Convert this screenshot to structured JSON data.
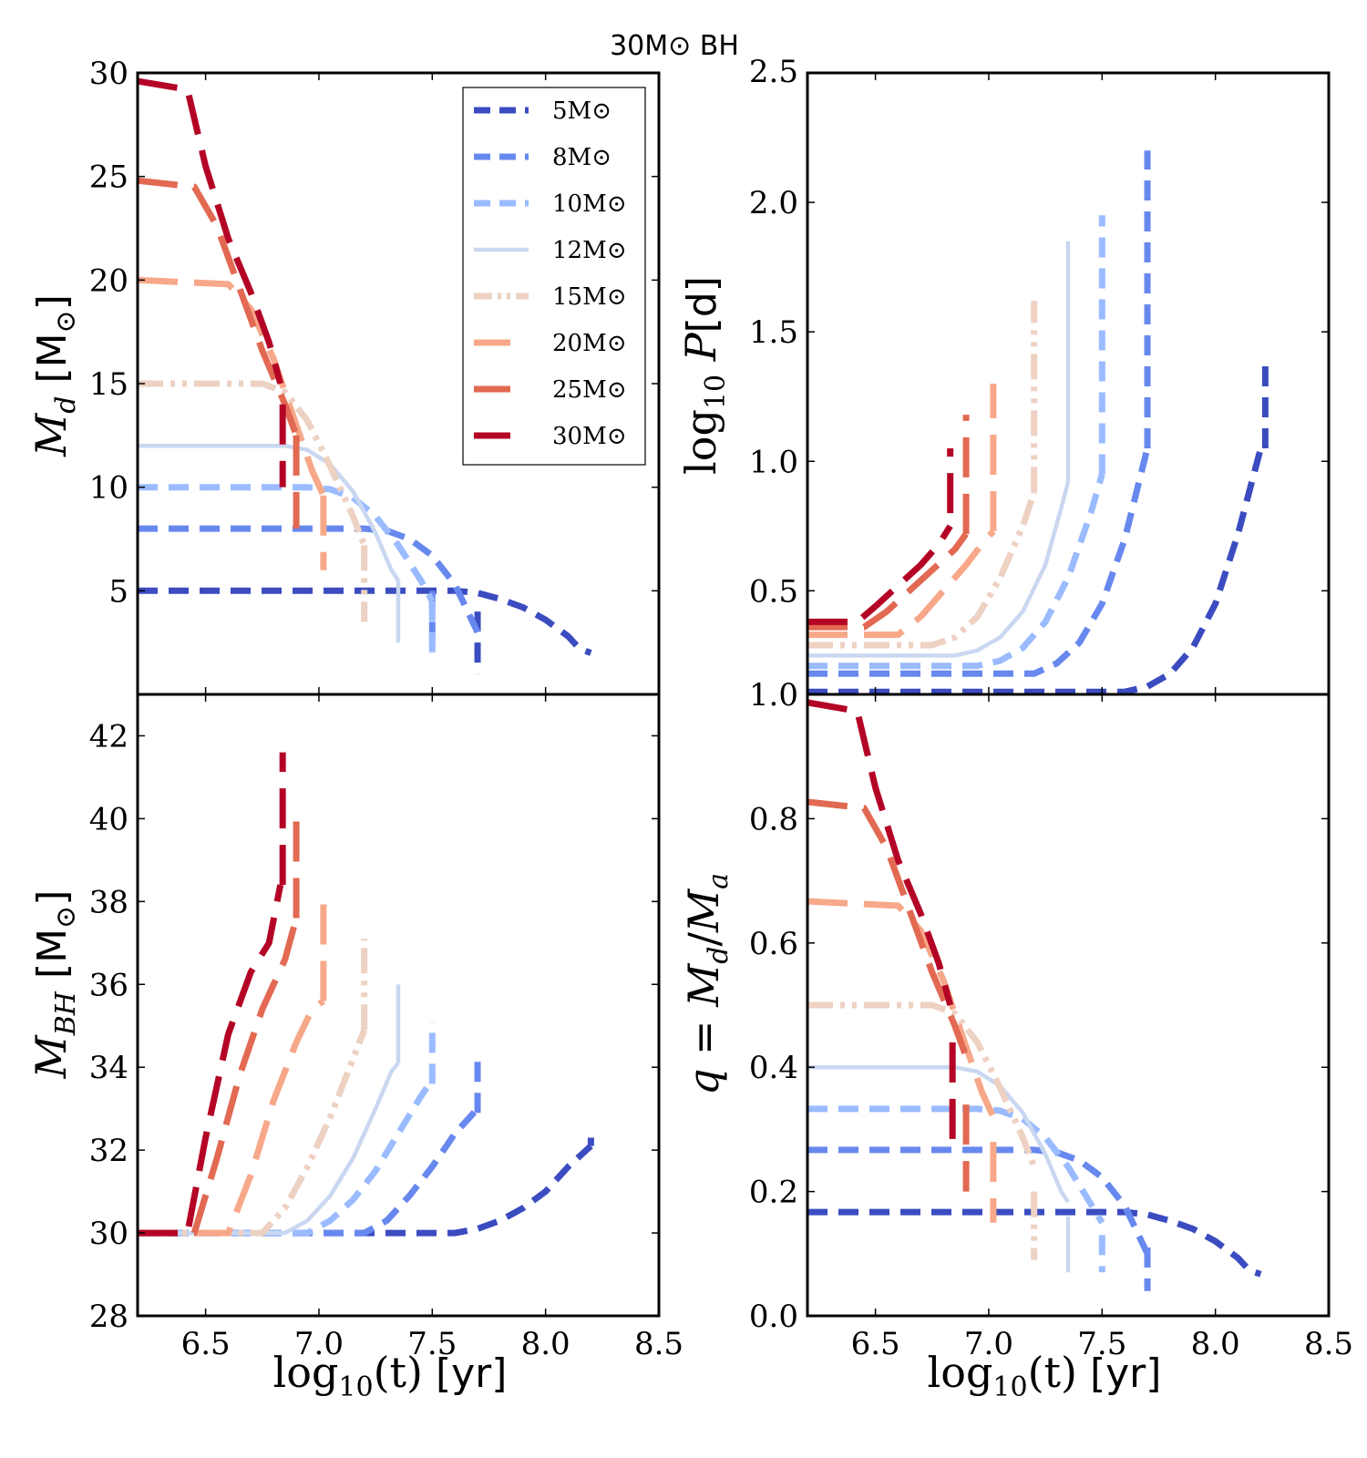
{
  "figure_title": "30M⊙ BH",
  "colors": {
    "5": "#3b4cc0",
    "8": "#6788ee",
    "10": "#9abbff",
    "12": "#c9d7f0",
    "15": "#edd1c2",
    "20": "#f7a889",
    "25": "#e26952",
    "30": "#b40426"
  },
  "legend_labels": [
    "5M⊙",
    "8M⊙",
    "10M⊙",
    "12M⊙",
    "15M⊙",
    "20M⊙",
    "25M⊙",
    "30M⊙"
  ],
  "chart_data": [
    {
      "id": "md",
      "type": "line",
      "title": "",
      "xlabel": "",
      "ylabel": "M_d [M⊙]",
      "ylabel_parts": {
        "italic": "M",
        "sub": "d",
        "unit": " [M",
        "sun": "⊙",
        "close": "]"
      },
      "xlim": [
        6.2,
        8.5
      ],
      "ylim": [
        0,
        30
      ],
      "xticks": [],
      "xtick_labels": [],
      "yticks": [
        5,
        10,
        15,
        20,
        25,
        30
      ],
      "ytick_labels": [
        "5",
        "10",
        "15",
        "20",
        "25",
        "30"
      ],
      "legend": "upper-right",
      "series": [
        {
          "name": "5M⊙",
          "style": "dash",
          "x": [
            6.2,
            7.6,
            7.7,
            7.8,
            7.9,
            8.0,
            8.1,
            8.15,
            8.2
          ],
          "y": [
            5,
            5,
            4.9,
            4.6,
            4.2,
            3.6,
            2.8,
            2.2,
            2.0
          ],
          "drop": {
            "x": 7.7,
            "y0": 4.0,
            "y1": 1.0
          }
        },
        {
          "name": "8M⊙",
          "style": "dash",
          "x": [
            6.2,
            7.2,
            7.3,
            7.4,
            7.5,
            7.6,
            7.7
          ],
          "y": [
            8,
            8,
            7.9,
            7.5,
            6.7,
            5.3,
            3.0
          ],
          "drop": {
            "x": 7.5,
            "y0": 5.0,
            "y1": 2.0
          }
        },
        {
          "name": "10M⊙",
          "style": "dash",
          "x": [
            6.2,
            6.95,
            7.05,
            7.15,
            7.25,
            7.35,
            7.45,
            7.5
          ],
          "y": [
            10,
            10,
            9.9,
            9.5,
            8.6,
            7.2,
            5.5,
            4.5
          ],
          "drop": {
            "x": 7.5,
            "y0": 4.5,
            "y1": 2.0
          }
        },
        {
          "name": "12M⊙",
          "style": "solid",
          "x": [
            6.2,
            6.85,
            6.95,
            7.05,
            7.15,
            7.25,
            7.32,
            7.35
          ],
          "y": [
            12,
            12,
            11.8,
            11.1,
            9.8,
            7.8,
            6.0,
            5.5
          ],
          "drop": {
            "x": 7.35,
            "y0": 5.5,
            "y1": 2.5
          }
        },
        {
          "name": "15M⊙",
          "style": "dashdotdot",
          "x": [
            6.2,
            6.75,
            6.85,
            6.95,
            7.05,
            7.15,
            7.2
          ],
          "y": [
            15,
            15,
            14.6,
            13.2,
            11.0,
            8.6,
            7.2
          ],
          "drop": {
            "x": 7.2,
            "y0": 7.2,
            "y1": 3.5
          }
        },
        {
          "name": "20M⊙",
          "style": "longdash",
          "x": [
            6.2,
            6.6,
            6.7,
            6.8,
            6.9,
            6.97,
            7.02
          ],
          "y": [
            20,
            19.8,
            18.6,
            16.2,
            13.0,
            10.8,
            9.6
          ],
          "drop": {
            "x": 7.02,
            "y0": 9.6,
            "y1": 6.0
          }
        },
        {
          "name": "25M⊙",
          "style": "longdash",
          "x": [
            6.2,
            6.45,
            6.55,
            6.65,
            6.75,
            6.85,
            6.9
          ],
          "y": [
            24.8,
            24.5,
            22.6,
            19.6,
            16.6,
            14.0,
            12.5
          ],
          "drop": {
            "x": 6.9,
            "y0": 12.5,
            "y1": 8.0
          }
        },
        {
          "name": "30M⊙",
          "style": "longdash",
          "x": [
            6.2,
            6.42,
            6.5,
            6.6,
            6.7,
            6.78,
            6.83
          ],
          "y": [
            29.6,
            29.2,
            25.5,
            22.0,
            19.4,
            17.0,
            15.0
          ],
          "drop": {
            "x": 6.84,
            "y0": 14.0,
            "y1": 10.0
          }
        }
      ]
    },
    {
      "id": "logp",
      "type": "line",
      "title": "",
      "xlabel": "",
      "ylabel": "log10 P[d]",
      "ylabel_parts": {
        "log": "log",
        "sub": "10",
        "italic": " P",
        "unit": "[d]"
      },
      "xlim": [
        6.2,
        8.5
      ],
      "ylim": [
        0.1,
        2.5
      ],
      "xticks": [],
      "xtick_labels": [],
      "yticks": [
        0.5,
        1.0,
        1.5,
        2.0,
        2.5
      ],
      "ytick_labels": [
        "0.5",
        "1.0",
        "1.5",
        "2.0",
        "2.5"
      ],
      "legend": "none",
      "series": [
        {
          "name": "5M⊙",
          "style": "dash",
          "x": [
            6.2,
            7.6,
            7.7,
            7.8,
            7.9,
            8.0,
            8.1,
            8.2
          ],
          "y": [
            0.11,
            0.11,
            0.13,
            0.18,
            0.28,
            0.45,
            0.72,
            1.05
          ],
          "drop": {
            "x": 8.22,
            "y0": 1.05,
            "y1": 1.38
          }
        },
        {
          "name": "8M⊙",
          "style": "dash",
          "x": [
            6.2,
            7.2,
            7.3,
            7.4,
            7.5,
            7.6,
            7.7
          ],
          "y": [
            0.18,
            0.18,
            0.22,
            0.3,
            0.45,
            0.7,
            1.05
          ],
          "drop": {
            "x": 7.7,
            "y0": 1.05,
            "y1": 2.2
          }
        },
        {
          "name": "10M⊙",
          "style": "dash",
          "x": [
            6.2,
            6.95,
            7.05,
            7.15,
            7.25,
            7.35,
            7.45,
            7.5
          ],
          "y": [
            0.21,
            0.21,
            0.23,
            0.28,
            0.38,
            0.55,
            0.8,
            0.95
          ],
          "drop": {
            "x": 7.5,
            "y0": 0.95,
            "y1": 1.95
          }
        },
        {
          "name": "12M⊙",
          "style": "solid",
          "x": [
            6.2,
            6.85,
            6.95,
            7.05,
            7.15,
            7.25,
            7.32,
            7.35
          ],
          "y": [
            0.25,
            0.25,
            0.27,
            0.32,
            0.42,
            0.6,
            0.82,
            0.92
          ],
          "drop": {
            "x": 7.35,
            "y0": 0.92,
            "y1": 1.85
          }
        },
        {
          "name": "15M⊙",
          "style": "dashdotdot",
          "x": [
            6.2,
            6.75,
            6.85,
            6.95,
            7.05,
            7.15,
            7.2
          ],
          "y": [
            0.29,
            0.29,
            0.32,
            0.4,
            0.55,
            0.75,
            0.88
          ],
          "drop": {
            "x": 7.2,
            "y0": 0.88,
            "y1": 1.62
          }
        },
        {
          "name": "20M⊙",
          "style": "longdash",
          "x": [
            6.2,
            6.6,
            6.7,
            6.8,
            6.9,
            6.97,
            7.02
          ],
          "y": [
            0.33,
            0.33,
            0.4,
            0.5,
            0.6,
            0.68,
            0.73
          ],
          "drop": {
            "x": 7.02,
            "y0": 0.73,
            "y1": 1.3
          }
        },
        {
          "name": "25M⊙",
          "style": "longdash",
          "x": [
            6.2,
            6.45,
            6.55,
            6.65,
            6.75,
            6.85,
            6.9
          ],
          "y": [
            0.36,
            0.36,
            0.42,
            0.5,
            0.58,
            0.66,
            0.72
          ],
          "drop": {
            "x": 6.9,
            "y0": 0.72,
            "y1": 1.18
          }
        },
        {
          "name": "30M⊙",
          "style": "longdash",
          "x": [
            6.2,
            6.42,
            6.5,
            6.6,
            6.7,
            6.78,
            6.83
          ],
          "y": [
            0.38,
            0.38,
            0.44,
            0.52,
            0.6,
            0.68,
            0.75
          ],
          "drop": {
            "x": 6.83,
            "y0": 0.8,
            "y1": 1.05
          }
        }
      ]
    },
    {
      "id": "mbh",
      "type": "line",
      "title": "",
      "xlabel": "log10(t) [yr]",
      "xlabel_parts": {
        "log": "log",
        "sub": "10",
        "arg": "(t)",
        "unit": " [yr]"
      },
      "ylabel": "M_BH [M⊙]",
      "ylabel_parts": {
        "italic": "M",
        "sub": "BH",
        "unit": " [M",
        "sun": "⊙",
        "close": "]"
      },
      "xlim": [
        6.2,
        8.5
      ],
      "ylim": [
        28,
        43
      ],
      "xticks": [
        6.5,
        7.0,
        7.5,
        8.0,
        8.5
      ],
      "xtick_labels": [
        "6.5",
        "7.0",
        "7.5",
        "8.0",
        "8.5"
      ],
      "yticks": [
        28,
        30,
        32,
        34,
        36,
        38,
        40,
        42
      ],
      "ytick_labels": [
        "28",
        "30",
        "32",
        "34",
        "36",
        "38",
        "40",
        "42"
      ],
      "legend": "none",
      "series": [
        {
          "name": "5M⊙",
          "style": "dash",
          "x": [
            6.2,
            7.6,
            7.7,
            7.8,
            7.9,
            8.0,
            8.1,
            8.2
          ],
          "y": [
            30,
            30,
            30.1,
            30.3,
            30.6,
            31.0,
            31.6,
            32.1
          ],
          "drop": {
            "x": 8.2,
            "y0": 32.1,
            "y1": 32.3
          }
        },
        {
          "name": "8M⊙",
          "style": "dash",
          "x": [
            6.2,
            7.2,
            7.3,
            7.4,
            7.5,
            7.6,
            7.7
          ],
          "y": [
            30,
            30,
            30.3,
            30.9,
            31.6,
            32.4,
            33.0
          ],
          "drop": {
            "x": 7.7,
            "y0": 32.9,
            "y1": 34.3
          }
        },
        {
          "name": "10M⊙",
          "style": "dash",
          "x": [
            6.2,
            6.95,
            7.05,
            7.15,
            7.25,
            7.35,
            7.45,
            7.5
          ],
          "y": [
            30,
            30,
            30.3,
            30.8,
            31.5,
            32.4,
            33.3,
            33.7
          ],
          "drop": {
            "x": 7.5,
            "y0": 33.6,
            "y1": 35.1
          }
        },
        {
          "name": "12M⊙",
          "style": "solid",
          "x": [
            6.2,
            6.85,
            6.95,
            7.05,
            7.15,
            7.25,
            7.32,
            7.35
          ],
          "y": [
            30,
            30,
            30.3,
            30.9,
            31.8,
            33.0,
            33.9,
            34.1
          ],
          "drop": {
            "x": 7.35,
            "y0": 34.1,
            "y1": 36.0
          }
        },
        {
          "name": "15M⊙",
          "style": "dashdotdot",
          "x": [
            6.2,
            6.75,
            6.85,
            6.95,
            7.05,
            7.15,
            7.2
          ],
          "y": [
            30,
            30,
            30.6,
            31.6,
            32.8,
            34.2,
            34.9
          ],
          "drop": {
            "x": 7.2,
            "y0": 34.9,
            "y1": 37.1
          }
        },
        {
          "name": "20M⊙",
          "style": "longdash",
          "x": [
            6.2,
            6.6,
            6.7,
            6.8,
            6.9,
            6.97,
            7.02
          ],
          "y": [
            30,
            30,
            31.4,
            33.2,
            34.6,
            35.4,
            35.6
          ],
          "drop": {
            "x": 7.02,
            "y0": 35.6,
            "y1": 38.3
          }
        },
        {
          "name": "25M⊙",
          "style": "longdash",
          "x": [
            6.2,
            6.45,
            6.55,
            6.65,
            6.75,
            6.85,
            6.9
          ],
          "y": [
            30,
            30,
            31.8,
            33.8,
            35.4,
            36.6,
            37.6
          ],
          "drop": {
            "x": 6.9,
            "y0": 37.6,
            "y1": 40.3
          }
        },
        {
          "name": "30M⊙",
          "style": "longdash",
          "x": [
            6.2,
            6.42,
            6.5,
            6.6,
            6.7,
            6.78,
            6.83
          ],
          "y": [
            30,
            30,
            32.3,
            34.8,
            36.3,
            37.0,
            38.4
          ],
          "drop": {
            "x": 6.84,
            "y0": 38.4,
            "y1": 41.6
          }
        }
      ]
    },
    {
      "id": "q",
      "type": "line",
      "title": "",
      "xlabel": "log10(t) [yr]",
      "xlabel_parts": {
        "log": "log",
        "sub": "10",
        "arg": "(t)",
        "unit": " [yr]"
      },
      "ylabel": "q = M_d/M_a",
      "ylabel_parts": {
        "q": "q",
        "eq": " = ",
        "m1": "M",
        "sub1": "d",
        "slash": "/",
        "m2": "M",
        "sub2": "a"
      },
      "xlim": [
        6.2,
        8.5
      ],
      "ylim": [
        0.0,
        1.0
      ],
      "xticks": [
        6.5,
        7.0,
        7.5,
        8.0,
        8.5
      ],
      "xtick_labels": [
        "6.5",
        "7.0",
        "7.5",
        "8.0",
        "8.5"
      ],
      "yticks": [
        0.0,
        0.2,
        0.4,
        0.6,
        0.8,
        1.0
      ],
      "ytick_labels": [
        "0.0",
        "0.2",
        "0.4",
        "0.6",
        "0.8",
        "1.0"
      ],
      "legend": "none",
      "series": [
        {
          "name": "5M⊙",
          "style": "dash",
          "x": [
            6.2,
            7.6,
            7.7,
            7.8,
            7.9,
            8.0,
            8.1,
            8.15,
            8.2
          ],
          "y": [
            0.167,
            0.167,
            0.163,
            0.153,
            0.14,
            0.12,
            0.093,
            0.073,
            0.067
          ],
          "drop": null
        },
        {
          "name": "8M⊙",
          "style": "dash",
          "x": [
            6.2,
            7.2,
            7.3,
            7.4,
            7.5,
            7.6,
            7.7
          ],
          "y": [
            0.267,
            0.267,
            0.263,
            0.25,
            0.223,
            0.177,
            0.1
          ],
          "drop": {
            "x": 7.7,
            "y0": 0.11,
            "y1": 0.04
          }
        },
        {
          "name": "10M⊙",
          "style": "dash",
          "x": [
            6.2,
            6.95,
            7.05,
            7.15,
            7.25,
            7.35,
            7.45,
            7.5
          ],
          "y": [
            0.333,
            0.333,
            0.33,
            0.317,
            0.287,
            0.24,
            0.18,
            0.15
          ],
          "drop": {
            "x": 7.5,
            "y0": 0.13,
            "y1": 0.07
          }
        },
        {
          "name": "12M⊙",
          "style": "solid",
          "x": [
            6.2,
            6.85,
            6.95,
            7.05,
            7.15,
            7.25,
            7.32,
            7.35
          ],
          "y": [
            0.4,
            0.4,
            0.393,
            0.37,
            0.327,
            0.26,
            0.2,
            0.183
          ],
          "drop": {
            "x": 7.35,
            "y0": 0.16,
            "y1": 0.07
          }
        },
        {
          "name": "15M⊙",
          "style": "dashdotdot",
          "x": [
            6.2,
            6.75,
            6.85,
            6.95,
            7.05,
            7.15,
            7.2
          ],
          "y": [
            0.5,
            0.5,
            0.487,
            0.44,
            0.367,
            0.287,
            0.24
          ],
          "drop": {
            "x": 7.2,
            "y0": 0.2,
            "y1": 0.09
          }
        },
        {
          "name": "20M⊙",
          "style": "longdash",
          "x": [
            6.2,
            6.6,
            6.7,
            6.8,
            6.9,
            6.97,
            7.02
          ],
          "y": [
            0.667,
            0.66,
            0.62,
            0.54,
            0.433,
            0.36,
            0.32
          ],
          "drop": {
            "x": 7.02,
            "y0": 0.28,
            "y1": 0.15
          }
        },
        {
          "name": "25M⊙",
          "style": "longdash",
          "x": [
            6.2,
            6.45,
            6.55,
            6.65,
            6.75,
            6.85,
            6.9
          ],
          "y": [
            0.827,
            0.817,
            0.753,
            0.653,
            0.553,
            0.467,
            0.417
          ],
          "drop": {
            "x": 6.9,
            "y0": 0.34,
            "y1": 0.2
          }
        },
        {
          "name": "30M⊙",
          "style": "longdash",
          "x": [
            6.2,
            6.42,
            6.5,
            6.6,
            6.7,
            6.78,
            6.83
          ],
          "y": [
            0.987,
            0.973,
            0.85,
            0.733,
            0.647,
            0.567,
            0.5
          ],
          "drop": {
            "x": 6.84,
            "y0": 0.44,
            "y1": 0.27
          }
        }
      ]
    }
  ]
}
